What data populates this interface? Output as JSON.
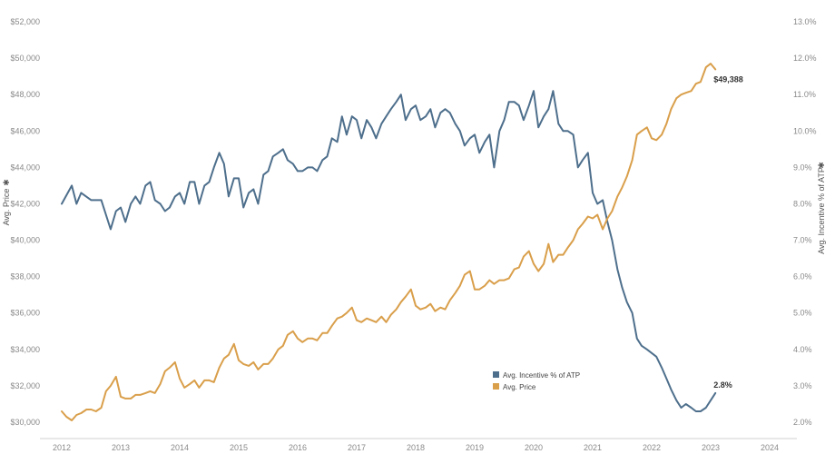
{
  "chart_data": {
    "type": "line",
    "x_ticks": [
      "2012",
      "2013",
      "2014",
      "2015",
      "2016",
      "2017",
      "2018",
      "2019",
      "2020",
      "2021",
      "2022",
      "2023",
      "2024"
    ],
    "y_left": {
      "label": "Avg. Price",
      "range": [
        30000,
        52000
      ],
      "ticks": [
        "$30,000",
        "$32,000",
        "$34,000",
        "$36,000",
        "$38,000",
        "$40,000",
        "$42,000",
        "$44,000",
        "$46,000",
        "$48,000",
        "$50,000",
        "$52,000"
      ]
    },
    "y_right": {
      "label": "Avg. Incentive % of ATP",
      "range": [
        2.0,
        13.0
      ],
      "ticks": [
        "2.0%",
        "3.0%",
        "4.0%",
        "5.0%",
        "6.0%",
        "7.0%",
        "8.0%",
        "9.0%",
        "10.0%",
        "11.0%",
        "12.0%",
        "13.0%"
      ]
    },
    "axis_marker": "✱",
    "grid": false,
    "legend_position": "bottom-center",
    "series": [
      {
        "name": "Avg. Incentive % of ATP",
        "axis": "right",
        "color": "#4e6f8c",
        "end_label": "2.8%",
        "points": [
          [
            2012.0,
            8.0
          ],
          [
            2012.17,
            8.5
          ],
          [
            2012.25,
            8.0
          ],
          [
            2012.33,
            8.3
          ],
          [
            2012.5,
            8.1
          ],
          [
            2012.67,
            8.1
          ],
          [
            2012.83,
            7.3
          ],
          [
            2012.92,
            7.8
          ],
          [
            2013.0,
            7.9
          ],
          [
            2013.08,
            7.5
          ],
          [
            2013.17,
            8.0
          ],
          [
            2013.25,
            8.2
          ],
          [
            2013.33,
            8.0
          ],
          [
            2013.42,
            8.5
          ],
          [
            2013.5,
            8.6
          ],
          [
            2013.58,
            8.1
          ],
          [
            2013.67,
            8.0
          ],
          [
            2013.75,
            7.8
          ],
          [
            2013.83,
            7.9
          ],
          [
            2013.92,
            8.2
          ],
          [
            2014.0,
            8.3
          ],
          [
            2014.08,
            8.0
          ],
          [
            2014.17,
            8.6
          ],
          [
            2014.25,
            8.6
          ],
          [
            2014.33,
            8.0
          ],
          [
            2014.42,
            8.5
          ],
          [
            2014.5,
            8.6
          ],
          [
            2014.58,
            9.0
          ],
          [
            2014.67,
            9.4
          ],
          [
            2014.75,
            9.1
          ],
          [
            2014.83,
            8.2
          ],
          [
            2014.92,
            8.7
          ],
          [
            2015.0,
            8.7
          ],
          [
            2015.08,
            7.9
          ],
          [
            2015.17,
            8.3
          ],
          [
            2015.25,
            8.4
          ],
          [
            2015.33,
            8.0
          ],
          [
            2015.42,
            8.8
          ],
          [
            2015.5,
            8.9
          ],
          [
            2015.58,
            9.3
          ],
          [
            2015.67,
            9.4
          ],
          [
            2015.75,
            9.5
          ],
          [
            2015.83,
            9.2
          ],
          [
            2015.92,
            9.1
          ],
          [
            2016.0,
            8.9
          ],
          [
            2016.08,
            8.9
          ],
          [
            2016.17,
            9.0
          ],
          [
            2016.25,
            9.0
          ],
          [
            2016.33,
            8.9
          ],
          [
            2016.42,
            9.2
          ],
          [
            2016.5,
            9.3
          ],
          [
            2016.58,
            9.8
          ],
          [
            2016.67,
            9.7
          ],
          [
            2016.75,
            10.4
          ],
          [
            2016.83,
            9.9
          ],
          [
            2016.92,
            10.4
          ],
          [
            2017.0,
            10.3
          ],
          [
            2017.08,
            9.8
          ],
          [
            2017.17,
            10.3
          ],
          [
            2017.25,
            10.1
          ],
          [
            2017.33,
            9.8
          ],
          [
            2017.42,
            10.2
          ],
          [
            2017.5,
            10.4
          ],
          [
            2017.58,
            10.6
          ],
          [
            2017.67,
            10.8
          ],
          [
            2017.75,
            11.0
          ],
          [
            2017.83,
            10.3
          ],
          [
            2017.92,
            10.6
          ],
          [
            2018.0,
            10.7
          ],
          [
            2018.08,
            10.3
          ],
          [
            2018.17,
            10.4
          ],
          [
            2018.25,
            10.6
          ],
          [
            2018.33,
            10.1
          ],
          [
            2018.42,
            10.5
          ],
          [
            2018.5,
            10.6
          ],
          [
            2018.58,
            10.5
          ],
          [
            2018.67,
            10.2
          ],
          [
            2018.75,
            10.0
          ],
          [
            2018.83,
            9.6
          ],
          [
            2018.92,
            9.8
          ],
          [
            2019.0,
            9.9
          ],
          [
            2019.08,
            9.4
          ],
          [
            2019.17,
            9.7
          ],
          [
            2019.25,
            9.9
          ],
          [
            2019.33,
            9.0
          ],
          [
            2019.42,
            10.0
          ],
          [
            2019.5,
            10.3
          ],
          [
            2019.58,
            10.8
          ],
          [
            2019.67,
            10.8
          ],
          [
            2019.75,
            10.7
          ],
          [
            2019.83,
            10.3
          ],
          [
            2019.92,
            10.7
          ],
          [
            2020.0,
            11.1
          ],
          [
            2020.08,
            10.1
          ],
          [
            2020.17,
            10.4
          ],
          [
            2020.25,
            10.6
          ],
          [
            2020.33,
            11.1
          ],
          [
            2020.42,
            10.2
          ],
          [
            2020.5,
            10.0
          ],
          [
            2020.58,
            10.0
          ],
          [
            2020.67,
            9.9
          ],
          [
            2020.75,
            9.0
          ],
          [
            2020.83,
            9.2
          ],
          [
            2020.92,
            9.4
          ],
          [
            2021.0,
            8.3
          ],
          [
            2021.08,
            8.0
          ],
          [
            2021.17,
            8.1
          ],
          [
            2021.25,
            7.5
          ],
          [
            2021.33,
            7.0
          ],
          [
            2021.42,
            6.2
          ],
          [
            2021.5,
            5.7
          ],
          [
            2021.58,
            5.3
          ],
          [
            2021.67,
            5.0
          ],
          [
            2021.75,
            4.3
          ],
          [
            2021.83,
            4.1
          ],
          [
            2021.92,
            4.0
          ],
          [
            2022.0,
            3.9
          ],
          [
            2022.08,
            3.8
          ],
          [
            2022.17,
            3.5
          ],
          [
            2022.25,
            3.2
          ],
          [
            2022.33,
            2.9
          ],
          [
            2022.42,
            2.6
          ],
          [
            2022.5,
            2.4
          ],
          [
            2022.58,
            2.5
          ],
          [
            2022.67,
            2.4
          ],
          [
            2022.75,
            2.3
          ],
          [
            2022.83,
            2.3
          ],
          [
            2022.92,
            2.4
          ],
          [
            2023.0,
            2.6
          ],
          [
            2023.08,
            2.8
          ]
        ]
      },
      {
        "name": "Avg. Price",
        "axis": "left",
        "color": "#d99f4b",
        "end_label": "$49,388",
        "points": [
          [
            2012.0,
            30600
          ],
          [
            2012.08,
            30300
          ],
          [
            2012.17,
            30100
          ],
          [
            2012.25,
            30400
          ],
          [
            2012.33,
            30500
          ],
          [
            2012.42,
            30700
          ],
          [
            2012.5,
            30700
          ],
          [
            2012.58,
            30600
          ],
          [
            2012.67,
            30800
          ],
          [
            2012.75,
            31700
          ],
          [
            2012.83,
            32000
          ],
          [
            2012.92,
            32500
          ],
          [
            2013.0,
            31400
          ],
          [
            2013.08,
            31300
          ],
          [
            2013.17,
            31300
          ],
          [
            2013.25,
            31500
          ],
          [
            2013.33,
            31500
          ],
          [
            2013.42,
            31600
          ],
          [
            2013.5,
            31700
          ],
          [
            2013.58,
            31600
          ],
          [
            2013.67,
            32100
          ],
          [
            2013.75,
            32800
          ],
          [
            2013.83,
            33000
          ],
          [
            2013.92,
            33300
          ],
          [
            2014.0,
            32400
          ],
          [
            2014.08,
            31900
          ],
          [
            2014.17,
            32100
          ],
          [
            2014.25,
            32300
          ],
          [
            2014.33,
            31900
          ],
          [
            2014.42,
            32300
          ],
          [
            2014.5,
            32300
          ],
          [
            2014.58,
            32200
          ],
          [
            2014.67,
            33000
          ],
          [
            2014.75,
            33500
          ],
          [
            2014.83,
            33700
          ],
          [
            2014.92,
            34300
          ],
          [
            2015.0,
            33400
          ],
          [
            2015.08,
            33200
          ],
          [
            2015.17,
            33100
          ],
          [
            2015.25,
            33300
          ],
          [
            2015.33,
            32900
          ],
          [
            2015.42,
            33200
          ],
          [
            2015.5,
            33200
          ],
          [
            2015.58,
            33500
          ],
          [
            2015.67,
            34000
          ],
          [
            2015.75,
            34200
          ],
          [
            2015.83,
            34800
          ],
          [
            2015.92,
            35000
          ],
          [
            2016.0,
            34600
          ],
          [
            2016.08,
            34400
          ],
          [
            2016.17,
            34600
          ],
          [
            2016.25,
            34600
          ],
          [
            2016.33,
            34500
          ],
          [
            2016.42,
            34900
          ],
          [
            2016.5,
            34900
          ],
          [
            2016.58,
            35300
          ],
          [
            2016.67,
            35700
          ],
          [
            2016.75,
            35800
          ],
          [
            2016.83,
            36000
          ],
          [
            2016.92,
            36300
          ],
          [
            2017.0,
            35600
          ],
          [
            2017.08,
            35500
          ],
          [
            2017.17,
            35700
          ],
          [
            2017.25,
            35600
          ],
          [
            2017.33,
            35500
          ],
          [
            2017.42,
            35800
          ],
          [
            2017.5,
            35500
          ],
          [
            2017.58,
            35900
          ],
          [
            2017.67,
            36200
          ],
          [
            2017.75,
            36600
          ],
          [
            2017.83,
            36900
          ],
          [
            2017.92,
            37300
          ],
          [
            2018.0,
            36400
          ],
          [
            2018.08,
            36200
          ],
          [
            2018.17,
            36300
          ],
          [
            2018.25,
            36500
          ],
          [
            2018.33,
            36100
          ],
          [
            2018.42,
            36300
          ],
          [
            2018.5,
            36200
          ],
          [
            2018.58,
            36700
          ],
          [
            2018.67,
            37100
          ],
          [
            2018.75,
            37500
          ],
          [
            2018.83,
            38100
          ],
          [
            2018.92,
            38300
          ],
          [
            2019.0,
            37300
          ],
          [
            2019.08,
            37300
          ],
          [
            2019.17,
            37500
          ],
          [
            2019.25,
            37800
          ],
          [
            2019.33,
            37600
          ],
          [
            2019.42,
            37800
          ],
          [
            2019.5,
            37800
          ],
          [
            2019.58,
            37900
          ],
          [
            2019.67,
            38400
          ],
          [
            2019.75,
            38500
          ],
          [
            2019.83,
            39100
          ],
          [
            2019.92,
            39400
          ],
          [
            2020.0,
            38700
          ],
          [
            2020.08,
            38300
          ],
          [
            2020.17,
            38700
          ],
          [
            2020.25,
            39800
          ],
          [
            2020.33,
            38800
          ],
          [
            2020.42,
            39200
          ],
          [
            2020.5,
            39200
          ],
          [
            2020.58,
            39600
          ],
          [
            2020.67,
            40000
          ],
          [
            2020.75,
            40600
          ],
          [
            2020.83,
            40900
          ],
          [
            2020.92,
            41300
          ],
          [
            2021.0,
            41200
          ],
          [
            2021.08,
            41400
          ],
          [
            2021.17,
            40600
          ],
          [
            2021.25,
            41200
          ],
          [
            2021.33,
            41600
          ],
          [
            2021.42,
            42400
          ],
          [
            2021.5,
            42900
          ],
          [
            2021.58,
            43500
          ],
          [
            2021.67,
            44400
          ],
          [
            2021.75,
            45800
          ],
          [
            2021.83,
            46000
          ],
          [
            2021.92,
            46200
          ],
          [
            2022.0,
            45600
          ],
          [
            2022.08,
            45500
          ],
          [
            2022.17,
            45800
          ],
          [
            2022.25,
            46400
          ],
          [
            2022.33,
            47200
          ],
          [
            2022.42,
            47800
          ],
          [
            2022.5,
            48000
          ],
          [
            2022.58,
            48100
          ],
          [
            2022.67,
            48200
          ],
          [
            2022.75,
            48600
          ],
          [
            2022.83,
            48700
          ],
          [
            2022.92,
            49500
          ],
          [
            2023.0,
            49700
          ],
          [
            2023.08,
            49388
          ]
        ]
      }
    ]
  }
}
